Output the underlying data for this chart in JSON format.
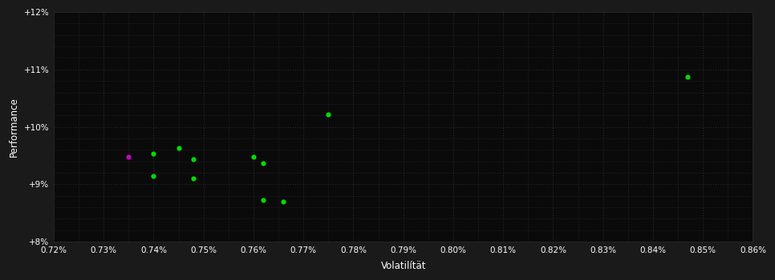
{
  "xlabel": "Volatilítät",
  "ylabel": "Performance",
  "background_color": "#1a1a1a",
  "plot_bg_color": "#0a0a0a",
  "grid_color": "#2a2a2a",
  "text_color": "#ffffff",
  "xlim": [
    0.0072,
    0.0086
  ],
  "ylim": [
    0.08,
    0.12
  ],
  "xticks": [
    0.0072,
    0.0073,
    0.0074,
    0.0075,
    0.0076,
    0.0077,
    0.0078,
    0.0079,
    0.008,
    0.0081,
    0.0082,
    0.0083,
    0.0084,
    0.0085,
    0.0086
  ],
  "yticks": [
    0.08,
    0.09,
    0.1,
    0.11,
    0.12
  ],
  "green_points": [
    [
      0.0074,
      0.0953
    ],
    [
      0.00745,
      0.0963
    ],
    [
      0.00748,
      0.0943
    ],
    [
      0.0074,
      0.0915
    ],
    [
      0.00748,
      0.091
    ],
    [
      0.0076,
      0.0948
    ],
    [
      0.00762,
      0.0937
    ],
    [
      0.00775,
      0.1022
    ],
    [
      0.00762,
      0.0873
    ],
    [
      0.00766,
      0.087
    ],
    [
      0.00847,
      0.1087
    ]
  ],
  "magenta_points": [
    [
      0.00735,
      0.0948
    ]
  ],
  "point_size": 20
}
